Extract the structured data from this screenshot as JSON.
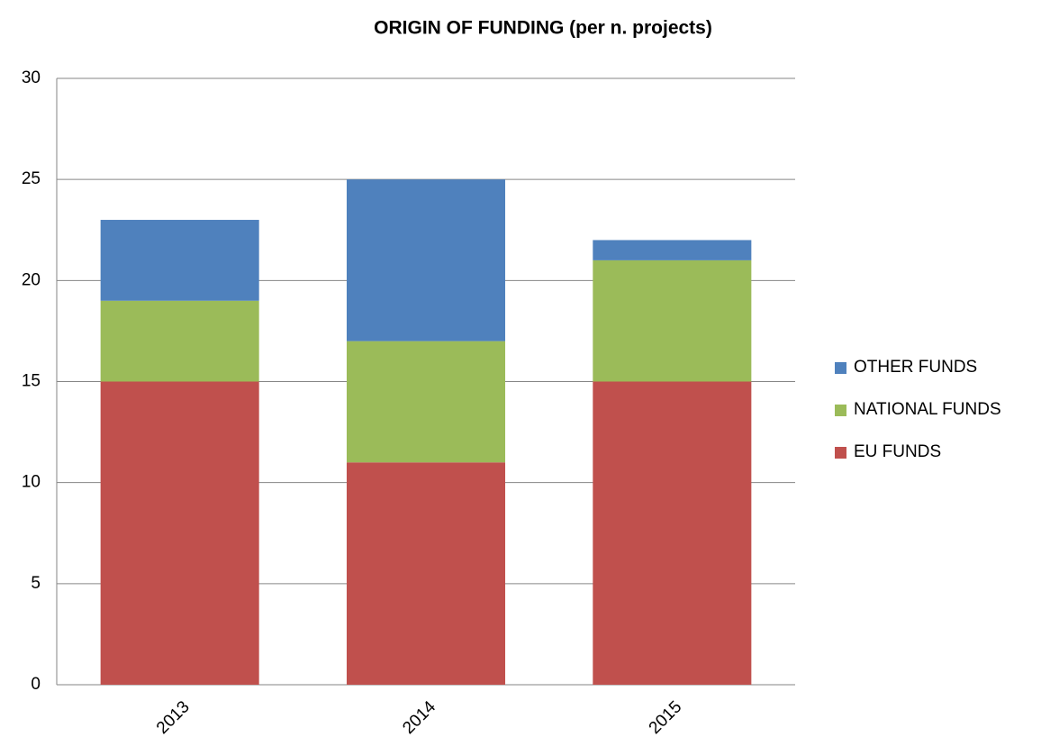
{
  "chart_data": {
    "type": "stacked_bar",
    "title": "ORIGIN OF FUNDING (per n. projects)",
    "categories": [
      "2013",
      "2014",
      "2015"
    ],
    "series": [
      {
        "name": "EU FUNDS",
        "color": "#c0504d",
        "values": [
          15,
          11,
          15
        ]
      },
      {
        "name": "NATIONAL FUNDS",
        "color": "#9bbb59",
        "values": [
          4,
          6,
          6
        ]
      },
      {
        "name": "OTHER FUNDS",
        "color": "#4f81bd",
        "values": [
          4,
          8,
          1
        ]
      }
    ],
    "ylim": [
      0,
      30
    ],
    "yticks": [
      0,
      5,
      10,
      15,
      20,
      25,
      30
    ],
    "grid": true,
    "legend": "right"
  }
}
